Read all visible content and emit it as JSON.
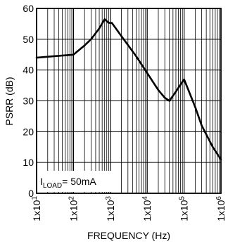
{
  "chart_data": {
    "type": "line",
    "xlabel": "FREQUENCY (Hz)",
    "ylabel": "PSRR (dB)",
    "xscale": "log",
    "xlim": [
      10,
      1000000
    ],
    "ylim": [
      0,
      60
    ],
    "grid": true,
    "x_ticks": [
      {
        "value": 10,
        "base": "1x10",
        "exp": "1"
      },
      {
        "value": 100,
        "base": "1x10",
        "exp": "2"
      },
      {
        "value": 1000,
        "base": "1x10",
        "exp": "3"
      },
      {
        "value": 10000,
        "base": "1x10",
        "exp": "4"
      },
      {
        "value": 100000,
        "base": "1x10",
        "exp": "5"
      },
      {
        "value": 1000000,
        "base": "1x10",
        "exp": "6"
      }
    ],
    "y_ticks": [
      0,
      10,
      20,
      30,
      40,
      50,
      60
    ],
    "annotation": {
      "prefix": "I",
      "sub": "LOAD",
      "suffix": "= 50mA"
    },
    "series": [
      {
        "color": "#000000",
        "points": [
          [
            10,
            44
          ],
          [
            30,
            44.5
          ],
          [
            100,
            45
          ],
          [
            200,
            48
          ],
          [
            300,
            50
          ],
          [
            500,
            53.5
          ],
          [
            700,
            56.5
          ],
          [
            900,
            55.3
          ],
          [
            1100,
            55.3
          ],
          [
            2000,
            51
          ],
          [
            5000,
            44.5
          ],
          [
            10000,
            39
          ],
          [
            20000,
            33.5
          ],
          [
            30000,
            31
          ],
          [
            40000,
            30
          ],
          [
            60000,
            33
          ],
          [
            100000,
            37
          ],
          [
            200000,
            28
          ],
          [
            300000,
            22
          ],
          [
            600000,
            15
          ],
          [
            1000000,
            11
          ]
        ]
      }
    ]
  }
}
